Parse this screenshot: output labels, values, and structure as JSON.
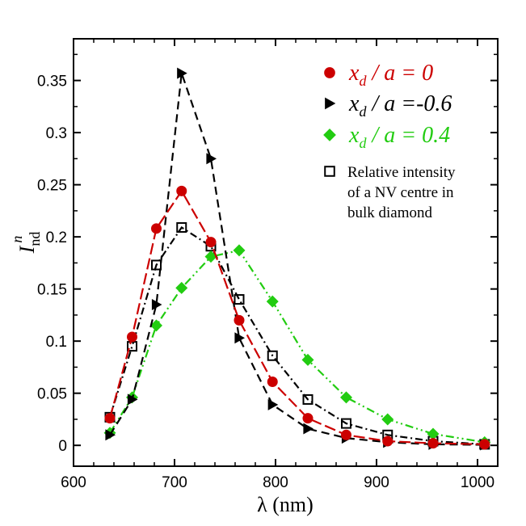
{
  "chart_data": {
    "type": "line",
    "xlabel": "λ (nm)",
    "ylabel_main": "I",
    "ylabel_sub": "nd",
    "ylabel_sup": "n",
    "xlim": [
      600,
      1020
    ],
    "ylim": [
      -0.02,
      0.39
    ],
    "xticks": [
      600,
      700,
      800,
      900,
      1000
    ],
    "xtick_labels": [
      "600",
      "700",
      "800",
      "900",
      "1000"
    ],
    "yticks": [
      0,
      0.05,
      0.1,
      0.15,
      0.2,
      0.25,
      0.3,
      0.35
    ],
    "ytick_labels": [
      "0",
      "0.05",
      "0.1",
      "0.15",
      "0.2",
      "0.25",
      "0.3",
      "0.35"
    ],
    "grid": false,
    "legend_position": "top-right",
    "series": [
      {
        "id": "red",
        "legend": {
          "main": "x",
          "sub": "d",
          "rest": " / a = 0"
        },
        "color": "#cc0000",
        "marker": "circle",
        "dash": "14,5",
        "x": [
          636,
          658,
          682,
          707,
          736,
          764,
          797,
          832,
          870,
          911,
          956,
          1007
        ],
        "y": [
          0.026,
          0.104,
          0.208,
          0.244,
          0.195,
          0.12,
          0.061,
          0.026,
          0.01,
          0.004,
          0.002,
          0.001
        ]
      },
      {
        "id": "black",
        "legend": {
          "main": "x",
          "sub": "d",
          "rest": " / a =-0.6"
        },
        "color": "#000000",
        "marker": "triangle-right",
        "dash": "10,6",
        "x": [
          636,
          658,
          682,
          707,
          736,
          764,
          797,
          832,
          870,
          911,
          956,
          1007
        ],
        "y": [
          0.01,
          0.044,
          0.135,
          0.357,
          0.275,
          0.103,
          0.039,
          0.016,
          0.007,
          0.003,
          0.001,
          0.0005
        ]
      },
      {
        "id": "green",
        "legend": {
          "main": "x",
          "sub": "d",
          "rest": " / a = 0.4"
        },
        "color": "#22cc11",
        "marker": "diamond",
        "dash": "10,4,2,4,2,4",
        "x": [
          636,
          658,
          682,
          707,
          736,
          764,
          797,
          832,
          870,
          911,
          956,
          1007
        ],
        "y": [
          0.012,
          0.046,
          0.115,
          0.151,
          0.181,
          0.187,
          0.138,
          0.082,
          0.046,
          0.025,
          0.011,
          0.003
        ]
      },
      {
        "id": "bulk",
        "legend_lines": [
          "Relative intensity",
          "of a NV centre in",
          "bulk diamond"
        ],
        "color": "#000000",
        "marker": "square-open",
        "dash": "9,4,2,4",
        "x": [
          636,
          658,
          682,
          707,
          736,
          764,
          797,
          832,
          870,
          911,
          956,
          1007
        ],
        "y": [
          0.027,
          0.095,
          0.173,
          0.209,
          0.191,
          0.14,
          0.086,
          0.044,
          0.021,
          0.01,
          0.004,
          0.001
        ]
      }
    ]
  }
}
